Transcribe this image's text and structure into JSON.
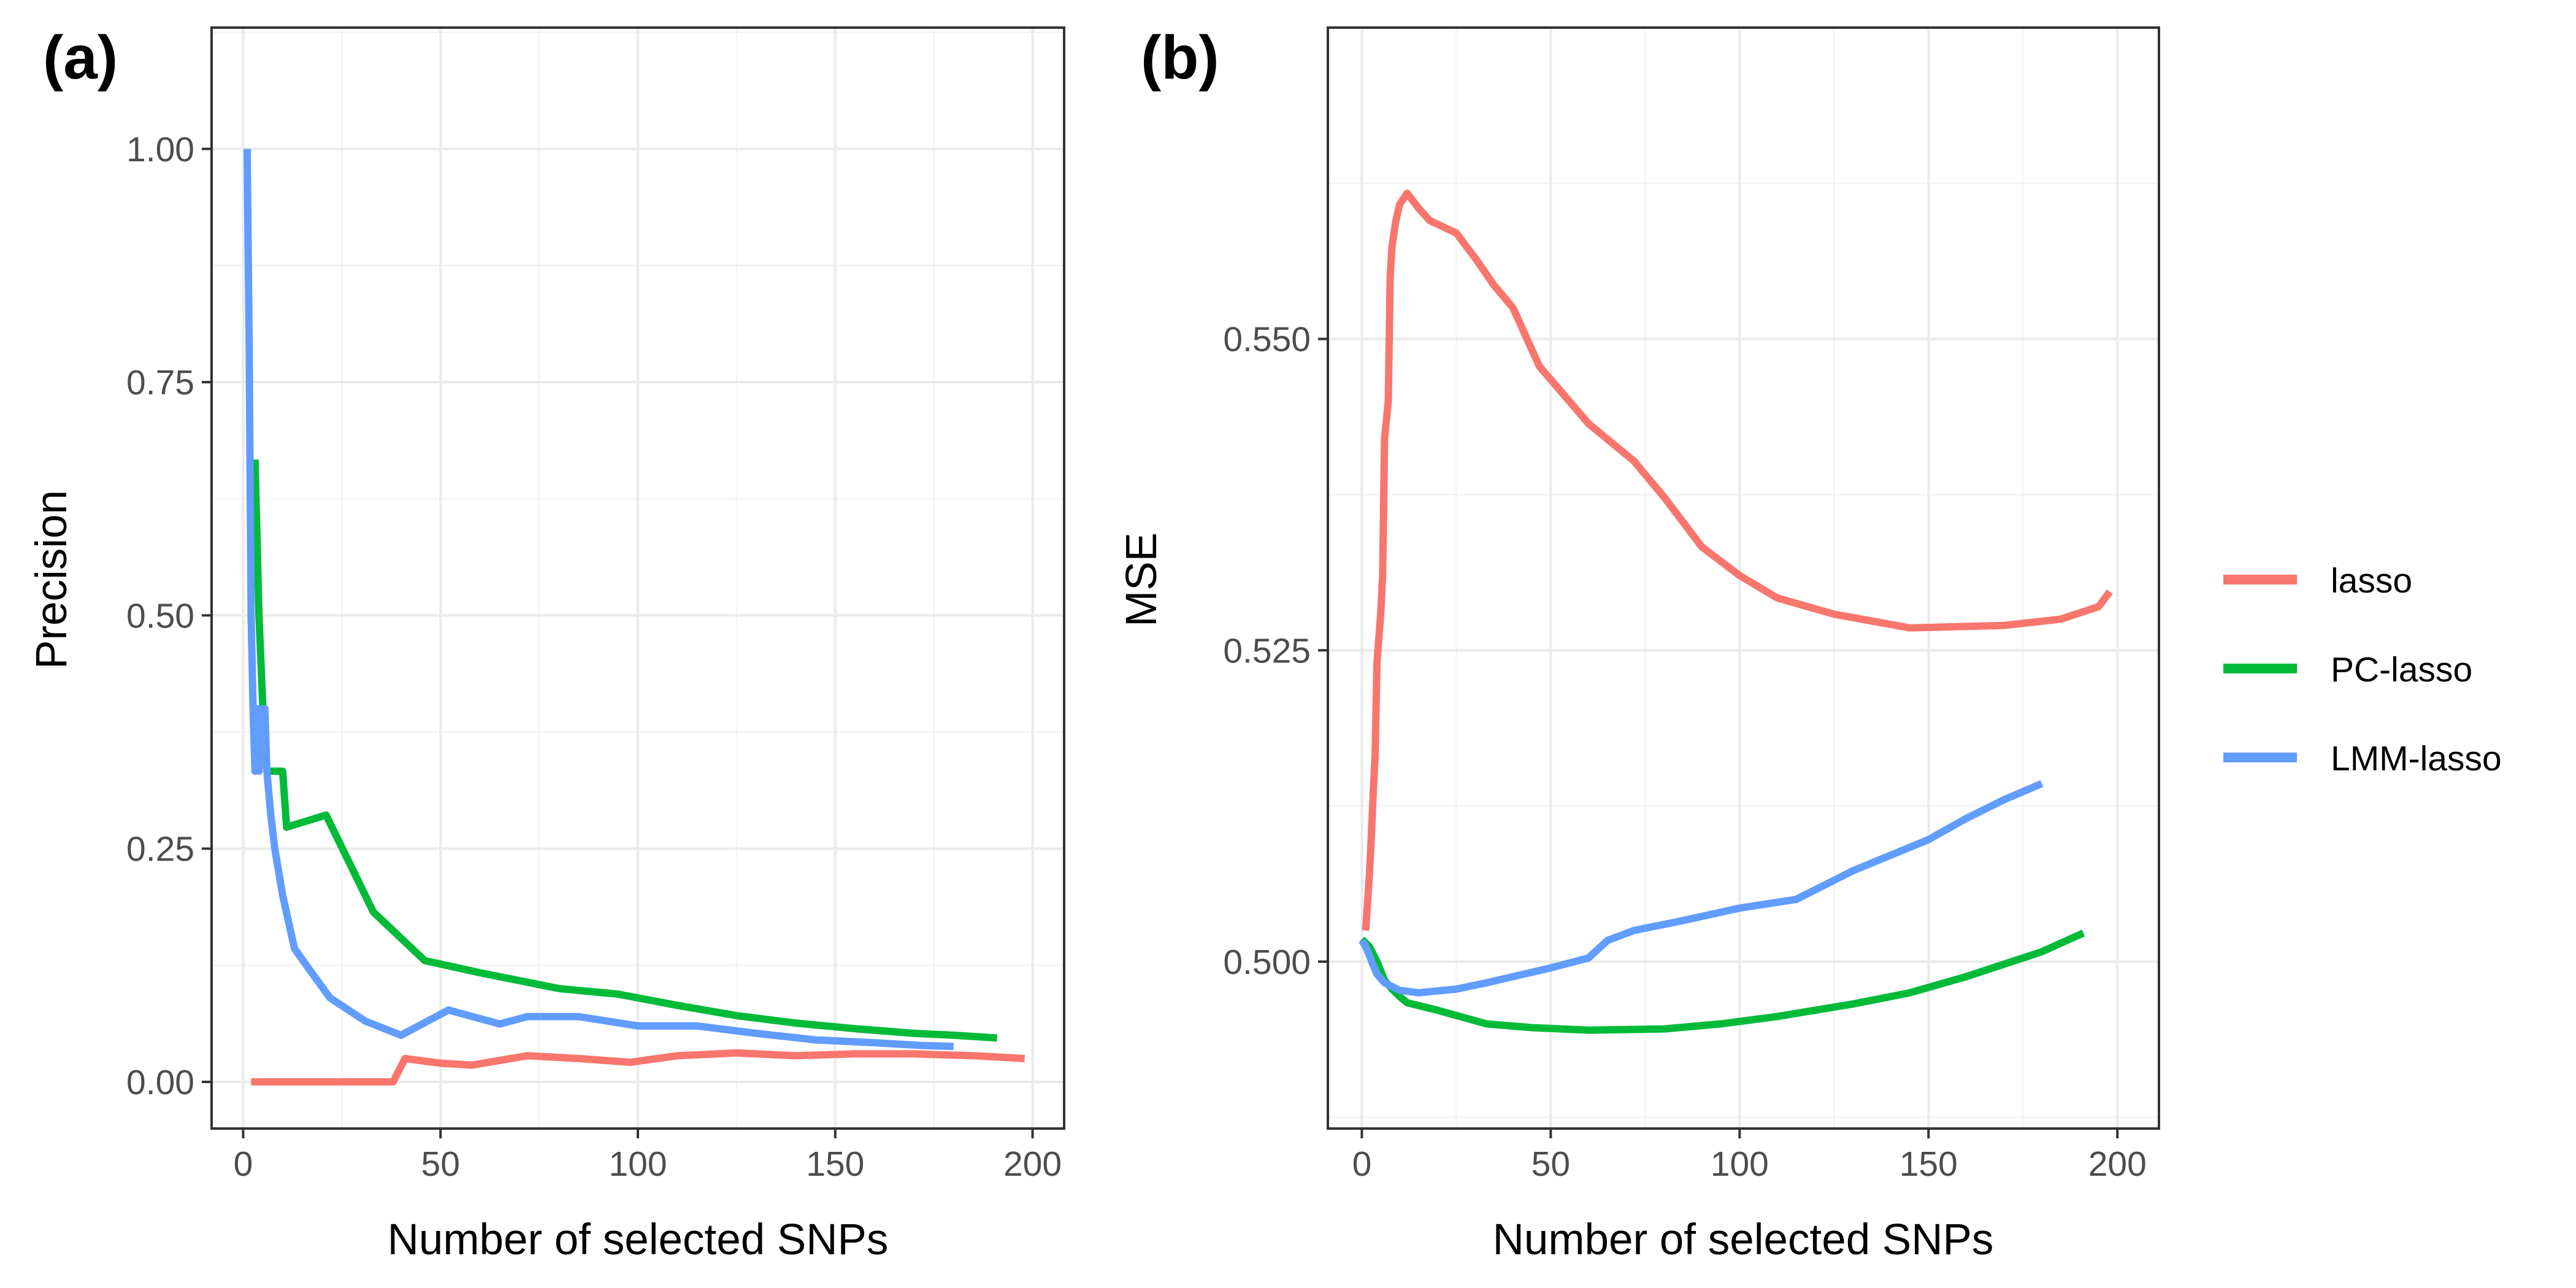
{
  "legend": {
    "entries": [
      {
        "label": "lasso",
        "color": "#F8766D"
      },
      {
        "label": "PC-lasso",
        "color": "#00BA38"
      },
      {
        "label": "LMM-lasso",
        "color": "#619CFF"
      }
    ]
  },
  "chart_data": [
    {
      "type": "line",
      "tag": "(a)",
      "xlabel": "Number of selected SNPs",
      "ylabel": "Precision",
      "xlim": [
        -8,
        208
      ],
      "ylim": [
        -0.05,
        1.13
      ],
      "xticks": [
        0,
        50,
        100,
        150,
        200
      ],
      "xtick_labels": [
        "0",
        "50",
        "100",
        "150",
        "200"
      ],
      "yticks": [
        0,
        0.25,
        0.5,
        0.75,
        1.0
      ],
      "ytick_labels": [
        "0.00",
        "0.25",
        "0.50",
        "0.75",
        "1.00"
      ],
      "grid": true,
      "series": [
        {
          "name": "lasso",
          "color": "#F8766D",
          "x": [
            2,
            10,
            20,
            30,
            38,
            41,
            50,
            58,
            72,
            85,
            98,
            110,
            125,
            140,
            155,
            170,
            185,
            198
          ],
          "y": [
            0,
            0,
            0,
            0,
            0,
            0.025,
            0.02,
            0.018,
            0.028,
            0.025,
            0.021,
            0.028,
            0.031,
            0.028,
            0.03,
            0.03,
            0.028,
            0.025
          ]
        },
        {
          "name": "PC-lasso",
          "color": "#00BA38",
          "x": [
            3,
            4,
            5,
            6,
            8,
            10,
            11,
            21,
            33,
            46,
            60,
            80,
            95,
            110,
            125,
            140,
            155,
            170,
            180,
            191
          ],
          "y": [
            0.667,
            0.5,
            0.4,
            0.333,
            0.333,
            0.333,
            0.273,
            0.286,
            0.182,
            0.13,
            0.117,
            0.1,
            0.094,
            0.082,
            0.071,
            0.063,
            0.057,
            0.052,
            0.05,
            0.047
          ]
        },
        {
          "name": "LMM-lasso",
          "color": "#619CFF",
          "x": [
            1,
            1.5,
            2,
            2.5,
            3,
            3.5,
            4,
            4.5,
            5,
            5.5,
            6,
            7,
            8,
            10,
            13,
            16,
            22,
            31,
            40,
            52,
            65,
            72,
            85,
            100,
            115,
            130,
            145,
            160,
            172,
            180
          ],
          "y": [
            1.0,
            0.8,
            0.5,
            0.4,
            0.333,
            0.4,
            0.333,
            0.4,
            0.36,
            0.4,
            0.333,
            0.286,
            0.25,
            0.2,
            0.143,
            0.125,
            0.09,
            0.065,
            0.05,
            0.077,
            0.062,
            0.07,
            0.07,
            0.06,
            0.06,
            0.052,
            0.045,
            0.042,
            0.039,
            0.038
          ]
        }
      ]
    },
    {
      "type": "line",
      "tag": "(b)",
      "xlabel": "Number of selected SNPs",
      "ylabel": "MSE",
      "xlim": [
        -9,
        211
      ],
      "ylim": [
        0.4866,
        0.575
      ],
      "xticks": [
        0,
        50,
        100,
        150,
        200
      ],
      "xtick_labels": [
        "0",
        "50",
        "100",
        "150",
        "200"
      ],
      "yticks": [
        0.5,
        0.525,
        0.55
      ],
      "ytick_labels": [
        "0.500",
        "0.525",
        "0.550"
      ],
      "grid": true,
      "legend_position": "right",
      "series": [
        {
          "name": "lasso",
          "color": "#F8766D",
          "x": [
            1,
            2,
            2.5,
            3,
            3.5,
            4,
            5,
            5.5,
            6,
            7,
            7.5,
            8,
            9,
            10,
            12,
            13,
            15,
            18,
            25,
            30,
            35,
            40,
            47,
            60,
            72,
            80,
            90,
            100,
            110,
            125,
            145,
            170,
            185,
            195,
            198
          ],
          "y": [
            0.5025,
            0.507,
            0.51,
            0.5135,
            0.5165,
            0.524,
            0.528,
            0.531,
            0.542,
            0.545,
            0.555,
            0.5575,
            0.5595,
            0.5608,
            0.5617,
            0.5613,
            0.5605,
            0.5595,
            0.5585,
            0.5565,
            0.5543,
            0.5525,
            0.5478,
            0.5432,
            0.5402,
            0.5373,
            0.5333,
            0.531,
            0.5292,
            0.5279,
            0.5268,
            0.527,
            0.5275,
            0.5285,
            0.5297
          ]
        },
        {
          "name": "PC-lasso",
          "color": "#00BA38",
          "x": [
            0,
            2,
            4,
            6,
            8,
            10,
            12,
            20,
            33,
            45,
            60,
            80,
            95,
            110,
            130,
            145,
            160,
            170,
            180,
            191
          ],
          "y": [
            0.5018,
            0.5012,
            0.5,
            0.4985,
            0.4978,
            0.4972,
            0.4967,
            0.4961,
            0.495,
            0.4947,
            0.4945,
            0.4946,
            0.495,
            0.4956,
            0.4966,
            0.4975,
            0.4988,
            0.4998,
            0.5008,
            0.5023
          ]
        },
        {
          "name": "LMM-lasso",
          "color": "#619CFF",
          "x": [
            0,
            1,
            2,
            3,
            4,
            6,
            8,
            10,
            15,
            25,
            33,
            40,
            50,
            60,
            65,
            72,
            85,
            100,
            115,
            130,
            150,
            160,
            170,
            180
          ],
          "y": [
            0.5017,
            0.5012,
            0.5005,
            0.4997,
            0.499,
            0.4983,
            0.498,
            0.4977,
            0.4975,
            0.4978,
            0.4983,
            0.4988,
            0.4995,
            0.5003,
            0.5017,
            0.5025,
            0.5033,
            0.5043,
            0.505,
            0.5073,
            0.5098,
            0.5115,
            0.513,
            0.5143
          ]
        }
      ]
    }
  ]
}
